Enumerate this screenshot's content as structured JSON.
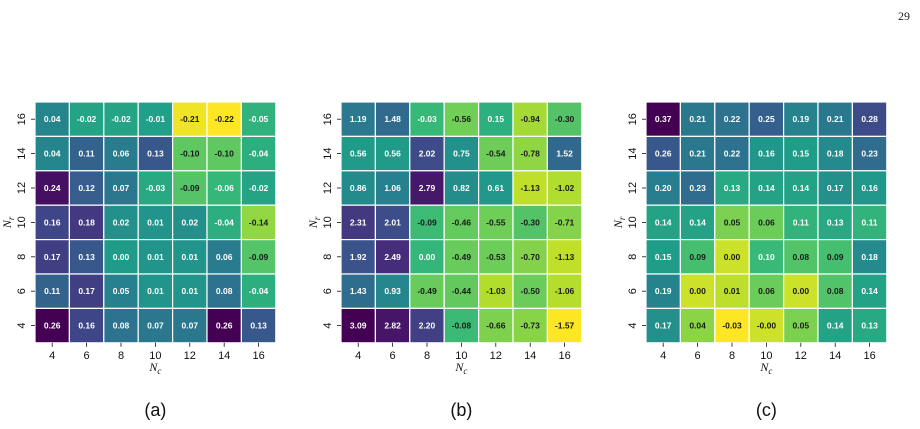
{
  "page_number": "29",
  "chart_data": [
    {
      "type": "heatmap",
      "panel_label": "(a)",
      "xlabel": "N_c",
      "ylabel": "N_r",
      "x_ticks": [
        "4",
        "6",
        "8",
        "10",
        "12",
        "14",
        "16"
      ],
      "y_ticks": [
        "16",
        "14",
        "12",
        "10",
        "8",
        "6",
        "4"
      ],
      "values": [
        [
          0.04,
          -0.02,
          -0.02,
          -0.01,
          -0.21,
          -0.22,
          -0.05
        ],
        [
          0.04,
          0.11,
          0.06,
          0.13,
          -0.1,
          -0.1,
          -0.04
        ],
        [
          0.24,
          0.12,
          0.07,
          -0.03,
          -0.09,
          -0.06,
          -0.02
        ],
        [
          0.16,
          0.18,
          0.02,
          0.01,
          0.02,
          -0.04,
          -0.14
        ],
        [
          0.17,
          0.13,
          0.0,
          0.01,
          0.01,
          0.06,
          -0.09
        ],
        [
          0.11,
          0.17,
          0.05,
          0.01,
          0.01,
          0.08,
          -0.04
        ],
        [
          0.26,
          0.16,
          0.08,
          0.07,
          0.07,
          0.26,
          0.13
        ]
      ],
      "colormap": "viridis_r"
    },
    {
      "type": "heatmap",
      "panel_label": "(b)",
      "xlabel": "N_c",
      "ylabel": "N_r",
      "x_ticks": [
        "4",
        "6",
        "8",
        "10",
        "12",
        "14",
        "16"
      ],
      "y_ticks": [
        "16",
        "14",
        "12",
        "10",
        "8",
        "6",
        "4"
      ],
      "values": [
        [
          1.19,
          1.48,
          -0.03,
          -0.56,
          0.15,
          -0.94,
          -0.3
        ],
        [
          0.56,
          0.56,
          2.02,
          0.75,
          -0.54,
          -0.78,
          1.52
        ],
        [
          0.86,
          1.06,
          2.79,
          0.82,
          0.61,
          -1.13,
          -1.02
        ],
        [
          2.31,
          2.01,
          -0.09,
          -0.46,
          -0.55,
          -0.3,
          -0.71
        ],
        [
          1.92,
          2.49,
          0.0,
          -0.49,
          -0.53,
          -0.7,
          -1.13
        ],
        [
          1.43,
          0.93,
          -0.49,
          -0.44,
          -1.03,
          -0.5,
          -1.06
        ],
        [
          3.09,
          2.82,
          2.2,
          -0.08,
          -0.66,
          -0.73,
          -1.57
        ]
      ],
      "colormap": "viridis_r"
    },
    {
      "type": "heatmap",
      "panel_label": "(c)",
      "xlabel": "N_c",
      "ylabel": "N_r",
      "x_ticks": [
        "4",
        "6",
        "8",
        "10",
        "12",
        "14",
        "16"
      ],
      "y_ticks": [
        "16",
        "14",
        "12",
        "10",
        "8",
        "6",
        "4"
      ],
      "values": [
        [
          0.37,
          0.21,
          0.22,
          0.25,
          0.19,
          0.21,
          0.28
        ],
        [
          0.26,
          0.21,
          0.22,
          0.16,
          0.15,
          0.18,
          0.23
        ],
        [
          0.2,
          0.23,
          0.13,
          0.14,
          0.14,
          0.17,
          0.16
        ],
        [
          0.14,
          0.14,
          0.05,
          0.06,
          0.11,
          0.13,
          0.11
        ],
        [
          0.15,
          0.09,
          0.0,
          0.1,
          0.08,
          0.09,
          0.18
        ],
        [
          0.19,
          0.0,
          0.01,
          0.06,
          0.0,
          0.08,
          0.14
        ],
        [
          0.17,
          0.04,
          -0.03,
          -0.0,
          0.05,
          0.14,
          0.13
        ]
      ],
      "colormap": "viridis_r"
    }
  ]
}
